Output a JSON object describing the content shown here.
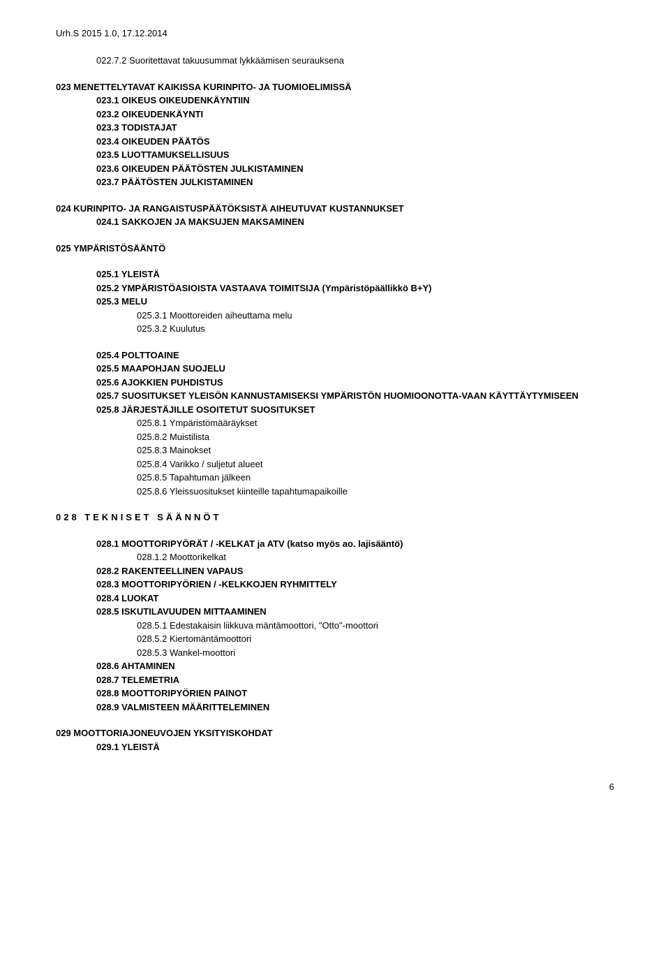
{
  "header": "Urh.S 2015 1.0, 17.12.2014",
  "lines": [
    {
      "text": "022.7.2 Suoritettavat takuusummat lykkäämisen seurauksena",
      "indent": 1,
      "bold": false,
      "mt": 0,
      "mb": 18
    },
    {
      "text": "023 MENETTELYTAVAT KAIKISSA KURINPITO- JA TUOMIOELIMISSÄ",
      "indent": 0,
      "bold": true
    },
    {
      "text": "023.1 OIKEUS OIKEUDENKÄYNTIIN",
      "indent": 1,
      "bold": true
    },
    {
      "text": "023.2 OIKEUDENKÄYNTI",
      "indent": 1,
      "bold": true
    },
    {
      "text": "023.3 TODISTAJAT",
      "indent": 1,
      "bold": true
    },
    {
      "text": "023.4 OIKEUDEN PÄÄTÖS",
      "indent": 1,
      "bold": true
    },
    {
      "text": "023.5 LUOTTAMUKSELLISUUS",
      "indent": 1,
      "bold": true
    },
    {
      "text": "023.6 OIKEUDEN PÄÄTÖSTEN JULKISTAMINEN",
      "indent": 1,
      "bold": true
    },
    {
      "text": "023.7 PÄÄTÖSTEN JULKISTAMINEN",
      "indent": 1,
      "bold": true,
      "mb": 18
    },
    {
      "text": "024 KURINPITO- JA RANGAISTUSPÄÄTÖKSISTÄ AIHEUTUVAT KUSTANNUKSET",
      "indent": 0,
      "bold": true
    },
    {
      "text": "024.1 SAKKOJEN JA MAKSUJEN MAKSAMINEN",
      "indent": 1,
      "bold": true,
      "mb": 18
    },
    {
      "text": "025 YMPÄRISTÖSÄÄNTÖ",
      "indent": 0,
      "bold": true,
      "mb": 18
    },
    {
      "text": "025.1 YLEISTÄ",
      "indent": 1,
      "bold": true
    },
    {
      "text": "025.2 YMPÄRISTÖASIOISTA VASTAAVA TOIMITSIJA (Ympäristöpäällikkö B+Y)",
      "indent": 1,
      "bold": true
    },
    {
      "text": "025.3 MELU",
      "indent": 1,
      "bold": true
    },
    {
      "text": "025.3.1 Moottoreiden aiheuttama melu",
      "indent": 2,
      "bold": false
    },
    {
      "text": "025.3.2 Kuulutus",
      "indent": 2,
      "bold": false,
      "mb": 18
    },
    {
      "text": "025.4 POLTTOAINE",
      "indent": 1,
      "bold": true
    },
    {
      "text": "025.5 MAAPOHJAN SUOJELU",
      "indent": 1,
      "bold": true
    },
    {
      "text": "025.6 AJOKKIEN PUHDISTUS",
      "indent": 1,
      "bold": true
    },
    {
      "text": "025.7 SUOSITUKSET YLEISÖN KANNUSTAMISEKSI YMPÄRISTÖN HUOMIOONOTTA-VAAN KÄYTTÄYTYMISEEN",
      "indent": 1,
      "bold": true
    },
    {
      "text": "025.8 JÄRJESTÄJILLE OSOITETUT SUOSITUKSET",
      "indent": 1,
      "bold": true
    },
    {
      "text": "025.8.1 Ympäristömääräykset",
      "indent": 2,
      "bold": false
    },
    {
      "text": "025.8.2 Muistilista",
      "indent": 2,
      "bold": false
    },
    {
      "text": "025.8.3 Mainokset",
      "indent": 2,
      "bold": false
    },
    {
      "text": "025.8.4 Varikko / suljetut alueet",
      "indent": 2,
      "bold": false
    },
    {
      "text": "025.8.5 Tapahtuman jälkeen",
      "indent": 2,
      "bold": false
    },
    {
      "text": "025.8.6 Yleissuositukset kiinteille tapahtumapaikoille",
      "indent": 2,
      "bold": false,
      "mb": 18
    },
    {
      "text": "028 TEKNISET SÄÄNNÖT",
      "indent": 0,
      "spaced": true,
      "mb": 18
    },
    {
      "text": "028.1 MOOTTORIPYÖRÄT / -KELKAT ja ATV (katso myös ao. lajisääntö)",
      "indent": 1,
      "bold": true
    },
    {
      "text": "028.1.2 Moottorikelkat",
      "indent": 2,
      "bold": false
    },
    {
      "text": "028.2 RAKENTEELLINEN VAPAUS",
      "indent": 1,
      "bold": true
    },
    {
      "text": "028.3 MOOTTORIPYÖRIEN / -KELKKOJEN RYHMITTELY",
      "indent": 1,
      "bold": true
    },
    {
      "text": "028.4 LUOKAT",
      "indent": 1,
      "bold": true
    },
    {
      "text": "028.5 ISKUTILAVUUDEN MITTAAMINEN",
      "indent": 1,
      "bold": true
    },
    {
      "text": "028.5.1 Edestakaisin liikkuva mäntämoottori, \"Otto\"-moottori",
      "indent": 2,
      "bold": false
    },
    {
      "text": "028.5.2 Kiertomäntämoottori",
      "indent": 2,
      "bold": false
    },
    {
      "text": "028.5.3 Wankel-moottori",
      "indent": 2,
      "bold": false
    },
    {
      "text": "028.6 AHTAMINEN",
      "indent": 1,
      "bold": true
    },
    {
      "text": "028.7 TELEMETRIA",
      "indent": 1,
      "bold": true
    },
    {
      "text": "028.8 MOOTTORIPYÖRIEN PAINOT",
      "indent": 1,
      "bold": true
    },
    {
      "text": "028.9 VALMISTEEN MÄÄRITTELEMINEN",
      "indent": 1,
      "bold": true,
      "mb": 18
    },
    {
      "text": "029 MOOTTORIAJONEUVOJEN YKSITYISKOHDAT",
      "indent": 0,
      "bold": true
    },
    {
      "text": "029.1 YLEISTÄ",
      "indent": 1,
      "bold": true
    }
  ],
  "pagenum": "6"
}
